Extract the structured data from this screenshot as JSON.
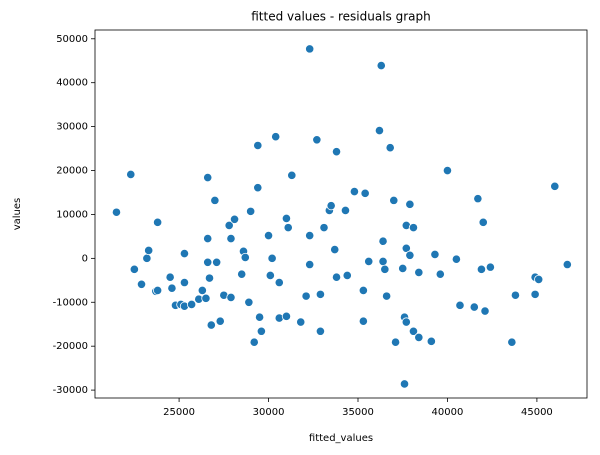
{
  "chart_data": {
    "type": "scatter",
    "title": "fitted values - residuals graph",
    "x_label": "fitted_values",
    "y_label": "values",
    "color": "#1f77b4",
    "xlim": [
      20300,
      47800
    ],
    "ylim": [
      -31800,
      52000
    ],
    "xticks": [
      25000,
      30000,
      35000,
      40000,
      45000
    ],
    "yticks": [
      -30000,
      -20000,
      -10000,
      0,
      10000,
      20000,
      30000,
      40000,
      50000
    ],
    "x": [
      21500,
      22300,
      22500,
      22900,
      23200,
      23300,
      23700,
      23800,
      23800,
      24500,
      24600,
      24800,
      25100,
      25300,
      25300,
      25300,
      25700,
      26100,
      26300,
      26500,
      26600,
      26600,
      26600,
      26700,
      26800,
      27000,
      27100,
      27300,
      27500,
      27800,
      27900,
      27900,
      28100,
      28500,
      28600,
      28700,
      28900,
      29000,
      29200,
      29400,
      29400,
      29500,
      29600,
      30000,
      30100,
      30200,
      30400,
      30600,
      30600,
      31000,
      31000,
      31100,
      31300,
      31800,
      32100,
      32300,
      32300,
      32300,
      32700,
      32900,
      32900,
      33100,
      33400,
      33500,
      33700,
      33800,
      33800,
      34300,
      34400,
      34800,
      35400,
      35300,
      35300,
      35600,
      36800,
      36200,
      36300,
      36400,
      36400,
      36500,
      36600,
      37000,
      37100,
      37500,
      37600,
      37600,
      37700,
      37700,
      37700,
      37900,
      37900,
      38100,
      38100,
      38400,
      38400,
      39100,
      39300,
      39600,
      40000,
      40500,
      40700,
      41500,
      41700,
      41900,
      42000,
      42100,
      42400,
      43600,
      43800,
      44900,
      45100,
      44900,
      46000,
      46700
    ],
    "values": [
      10500,
      19100,
      -2500,
      -5900,
      0,
      1800,
      -7500,
      8200,
      -7300,
      -4300,
      -6800,
      -10700,
      -10500,
      1100,
      -5500,
      -10900,
      -10500,
      -9300,
      -7300,
      -9100,
      -900,
      4500,
      18400,
      -4500,
      -15200,
      13200,
      -900,
      -14300,
      -8400,
      7500,
      4500,
      -8900,
      8900,
      -3600,
      1600,
      200,
      -10000,
      10700,
      -19100,
      16100,
      25700,
      -13400,
      -16600,
      5200,
      -3900,
      0,
      27700,
      -5500,
      -13600,
      -13200,
      9100,
      7000,
      18900,
      -14500,
      -8600,
      5200,
      -1400,
      47700,
      27000,
      -16600,
      -8200,
      7000,
      10900,
      12000,
      2000,
      -4300,
      24300,
      10900,
      -3900,
      15200,
      14800,
      -14300,
      -7300,
      -700,
      25200,
      29100,
      43900,
      3900,
      -700,
      -2500,
      -8600,
      13200,
      -19100,
      -2300,
      -28600,
      -13400,
      -14500,
      7500,
      2300,
      700,
      12300,
      7000,
      -16600,
      -3200,
      -18000,
      -18900,
      900,
      -3600,
      20000,
      -200,
      -10700,
      -11100,
      13600,
      -2500,
      8200,
      -12000,
      -2000,
      -19100,
      -8400,
      -4300,
      -4800,
      -8200,
      16400,
      -1400
    ]
  }
}
